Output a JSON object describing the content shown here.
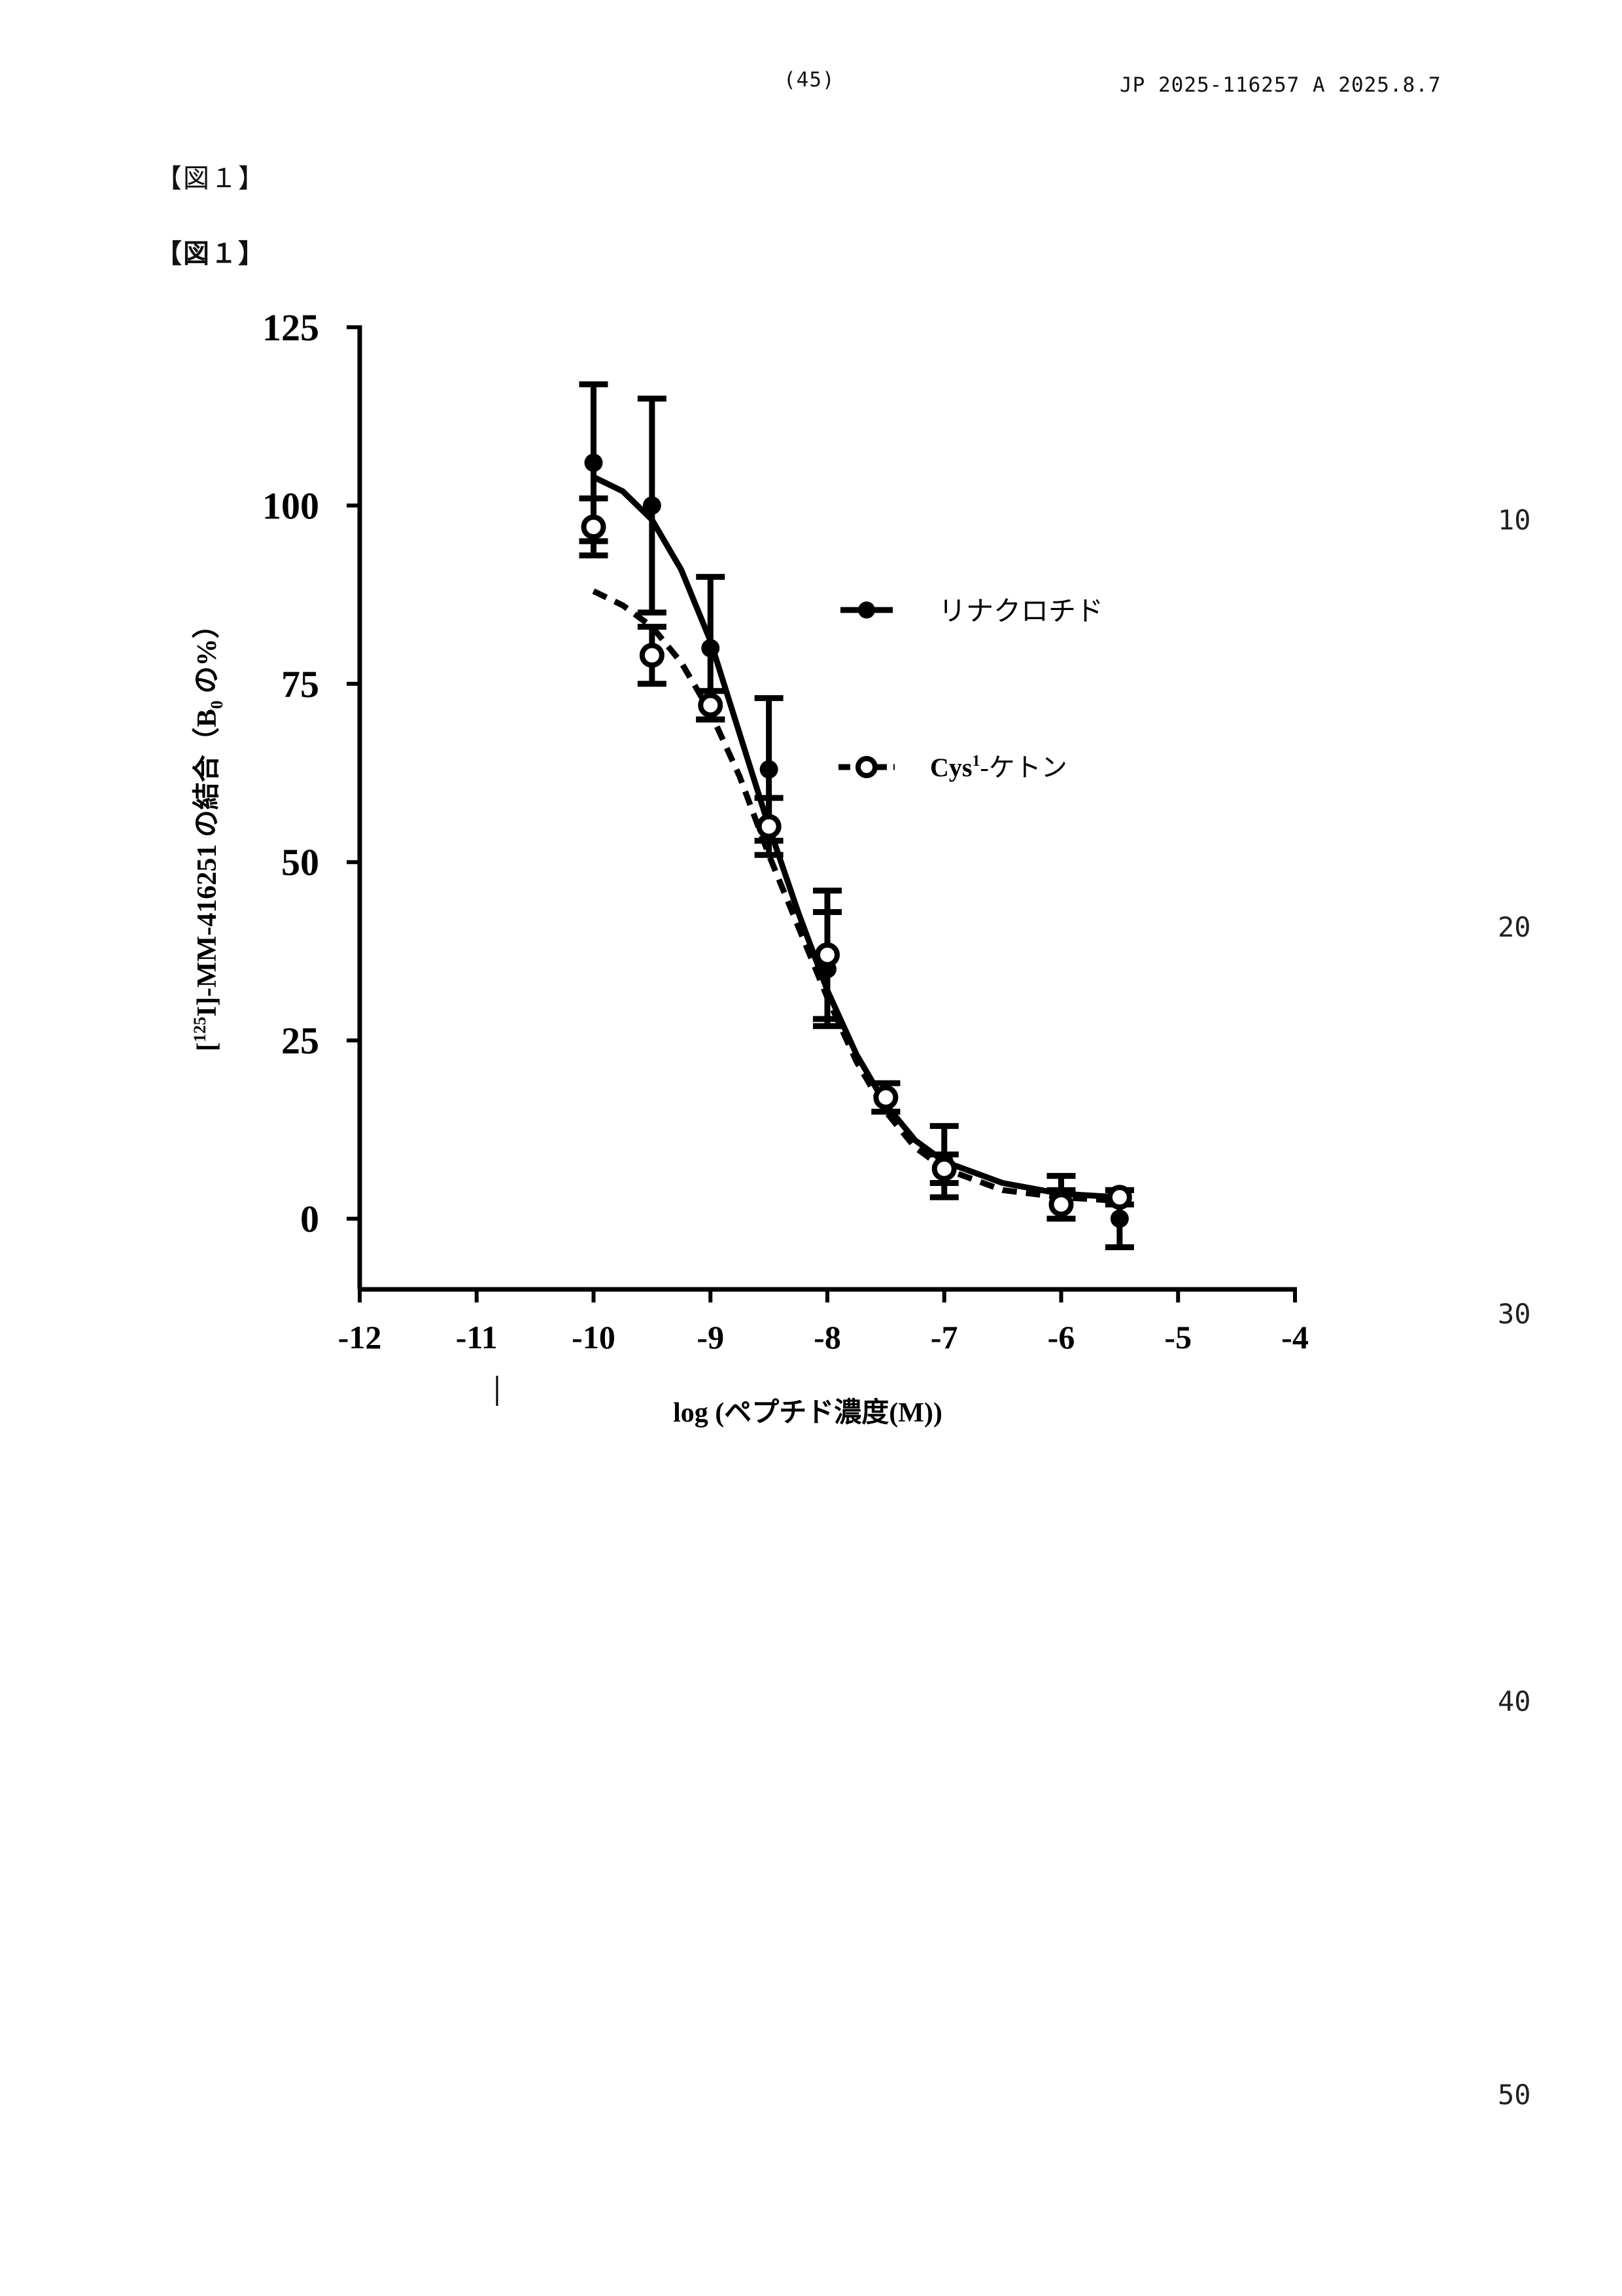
{
  "header": {
    "page_number": "(45)",
    "publication": "JP  2025-116257  A  2025.8.7"
  },
  "figure_labels": [
    "【図１】",
    "【図１】"
  ],
  "line_numbers": [
    "10",
    "20",
    "30",
    "40",
    "50"
  ],
  "chart_data": {
    "type": "line",
    "title": "",
    "xlabel": "log (ペプチド濃度(M))",
    "ylabel_prefix": "[",
    "ylabel_sup": "125",
    "ylabel_main": "I]-MM-416251 の結合（B",
    "ylabel_sub": "0",
    "ylabel_suffix": " の%）",
    "xlim": [
      -12,
      -4
    ],
    "ylim": [
      -10,
      125
    ],
    "xticks": [
      -12,
      -11,
      -10,
      -9,
      -8,
      -7,
      -6,
      -5,
      -4
    ],
    "xtick_labels": [
      "-12",
      "-11",
      "-10",
      "-9",
      "-8",
      "-7",
      "-6",
      "-5",
      "-4"
    ],
    "yticks": [
      0,
      25,
      50,
      75,
      100,
      125
    ],
    "ytick_labels": [
      "0",
      "25",
      "50",
      "75",
      "100",
      "125"
    ],
    "legend_position": "right",
    "series": [
      {
        "name": "リナクロチド",
        "marker": "filled-circle",
        "line": "solid",
        "x": [
          -10,
          -9.5,
          -9,
          -8.5,
          -8,
          -7.5,
          -7,
          -6,
          -5.5
        ],
        "y": [
          106,
          100,
          80,
          63,
          35,
          17,
          8,
          3,
          0
        ],
        "err": [
          11,
          15,
          10,
          10,
          8,
          2,
          5,
          3,
          4
        ],
        "curve_x": [
          -10,
          -9.75,
          -9.5,
          -9.25,
          -9,
          -8.75,
          -8.5,
          -8.25,
          -8,
          -7.75,
          -7.5,
          -7.25,
          -7,
          -6.5,
          -6,
          -5.5
        ],
        "curve_y": [
          104,
          102,
          98,
          91,
          81,
          68,
          55,
          43,
          32,
          23,
          16,
          11,
          8,
          5,
          3.5,
          3
        ]
      },
      {
        "name_prefix": "Cys",
        "name_sup": "1",
        "name_suffix": "-ケトン",
        "marker": "open-circle",
        "line": "dashed",
        "x": [
          -10,
          -9.5,
          -9,
          -8.5,
          -8,
          -7.5,
          -7,
          -6,
          -5.5
        ],
        "y": [
          97,
          79,
          72,
          55,
          37,
          17,
          7,
          2,
          3
        ],
        "err": [
          4,
          4,
          2,
          4,
          9,
          2,
          2,
          2,
          1
        ],
        "curve_x": [
          -10,
          -9.75,
          -9.5,
          -9.25,
          -9,
          -8.75,
          -8.5,
          -8.25,
          -8,
          -7.75,
          -7.5,
          -7.25,
          -7,
          -6.5,
          -6,
          -5.5
        ],
        "curve_y": [
          88,
          86,
          83,
          78,
          71,
          62,
          51,
          41,
          31,
          22,
          15,
          10,
          7,
          4,
          3,
          2.5
        ]
      }
    ]
  }
}
